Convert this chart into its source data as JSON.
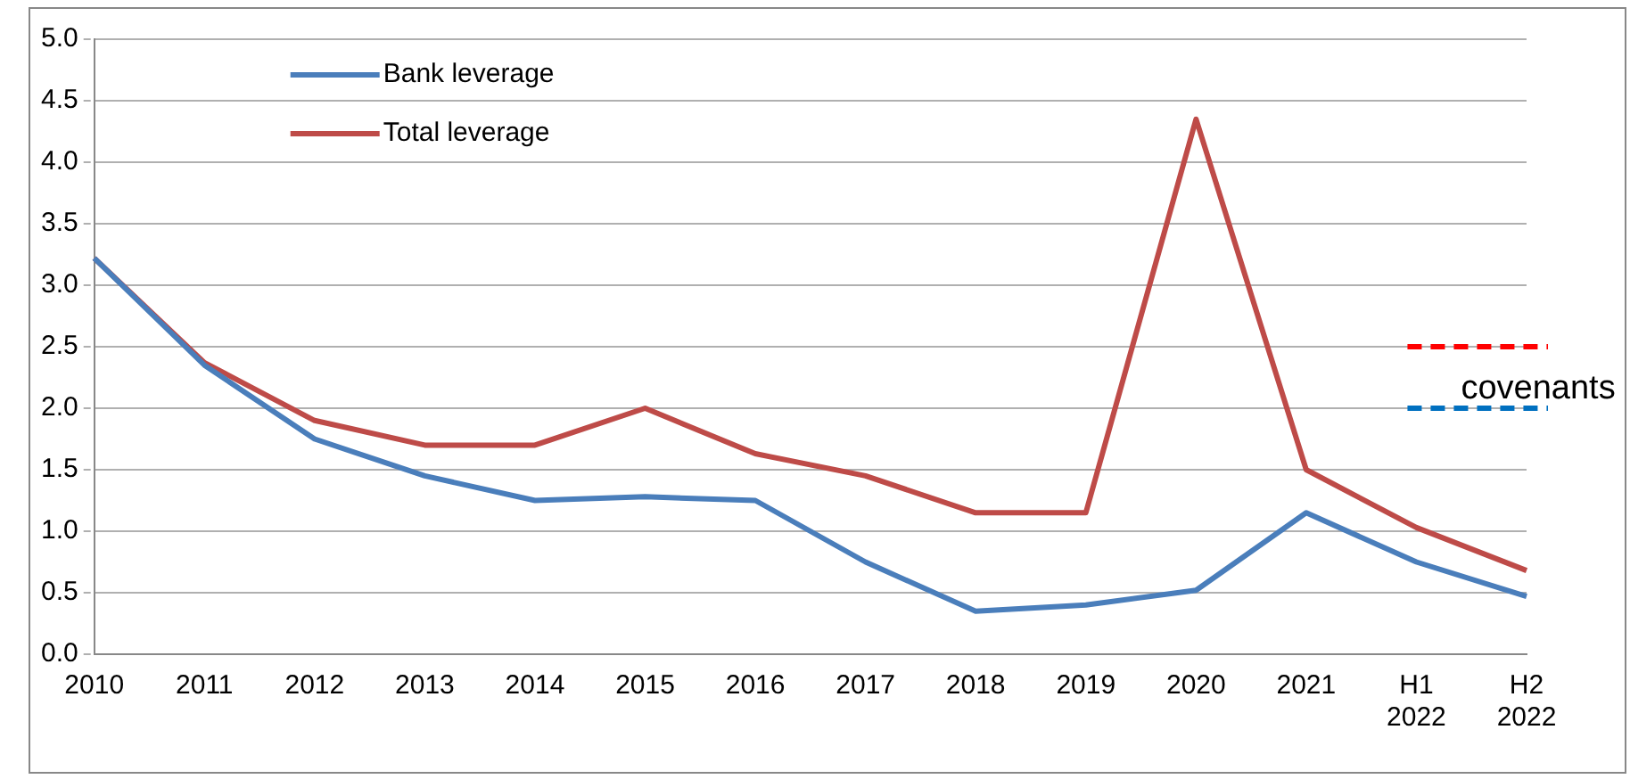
{
  "chart_data": {
    "type": "line",
    "categories": [
      "2010",
      "2011",
      "2012",
      "2013",
      "2014",
      "2015",
      "2016",
      "2017",
      "2018",
      "2019",
      "2020",
      "2021",
      "H1\n2022",
      "H2\n2022"
    ],
    "series": [
      {
        "name": "Bank leverage",
        "color": "#4a7ebb",
        "values": [
          3.22,
          2.35,
          1.75,
          1.45,
          1.25,
          1.28,
          1.25,
          0.75,
          0.35,
          0.4,
          0.52,
          1.15,
          0.75,
          0.47
        ]
      },
      {
        "name": "Total leverage",
        "color": "#be4b48",
        "values": [
          3.22,
          2.37,
          1.9,
          1.7,
          1.7,
          2.0,
          1.63,
          1.45,
          1.15,
          1.15,
          4.35,
          1.5,
          1.03,
          0.68
        ]
      }
    ],
    "ylim": [
      0,
      5
    ],
    "yticks": [
      {
        "value": 0,
        "label": "0.0"
      },
      {
        "value": 0.5,
        "label": "0.5"
      },
      {
        "value": 1,
        "label": "1.0"
      },
      {
        "value": 1.5,
        "label": "1.5"
      },
      {
        "value": 2,
        "label": "2.0"
      },
      {
        "value": 2.5,
        "label": "2.5"
      },
      {
        "value": 3,
        "label": "3.0"
      },
      {
        "value": 3.5,
        "label": "3.5"
      },
      {
        "value": 4,
        "label": "4.0"
      },
      {
        "value": 4.5,
        "label": "4.5"
      },
      {
        "value": 5,
        "label": "5.0"
      }
    ],
    "ref_lines": [
      {
        "axis": "y",
        "value": 2.5,
        "color": "#ff0000",
        "line_style": "dashed"
      },
      {
        "axis": "y",
        "value": 2.0,
        "color": "#0070c0",
        "line_style": "dashed",
        "label": "covenants"
      }
    ],
    "grid": "y",
    "legend": "top left",
    "marker": "none",
    "line_style": "solid"
  }
}
